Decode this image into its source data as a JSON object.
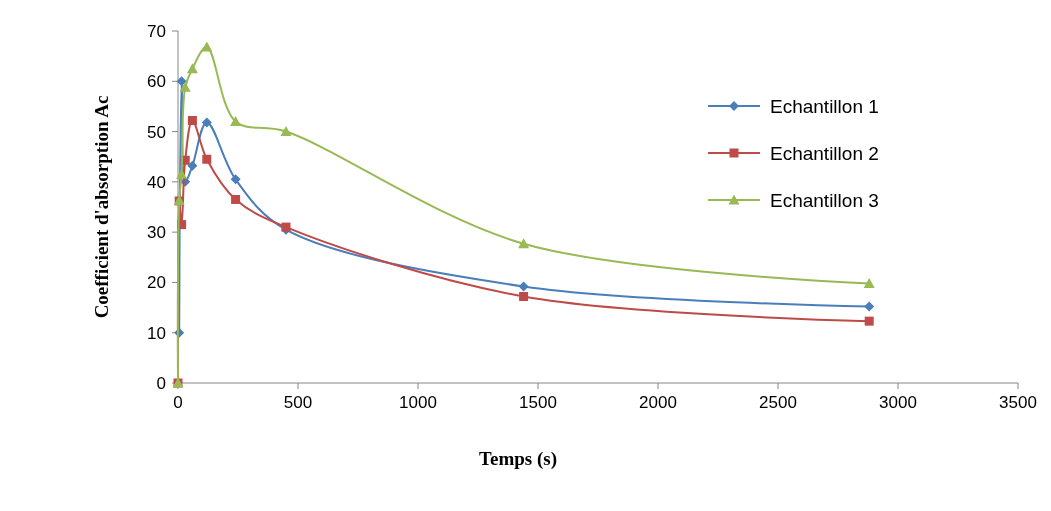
{
  "chart_data": {
    "type": "line",
    "xlabel": "Temps (s)",
    "ylabel": "Coefficient d'absorption Ac",
    "xlim": [
      0,
      3500
    ],
    "xticks": [
      0,
      500,
      1000,
      1500,
      2000,
      2500,
      3000,
      3500
    ],
    "ylim": [
      0,
      70
    ],
    "yticks": [
      0,
      10,
      20,
      30,
      40,
      50,
      60,
      70
    ],
    "grid": false,
    "legend": "right",
    "line_style": "solid",
    "series": [
      {
        "name": "Echantillon 1",
        "color": "#4a7ebb",
        "marker": "diamond",
        "x": [
          5,
          15,
          30,
          60,
          120,
          240,
          450,
          1440,
          2880
        ],
        "values": [
          10,
          60,
          40,
          43.2,
          51.8,
          40.5,
          30.5,
          19.2,
          15.2
        ]
      },
      {
        "name": "Echantillon 2",
        "color": "#be4b48",
        "marker": "square",
        "x": [
          0,
          5,
          15,
          30,
          60,
          120,
          240,
          450,
          1440,
          2880
        ],
        "values": [
          0,
          36.2,
          31.5,
          44.3,
          52.2,
          44.5,
          36.5,
          31,
          17.2,
          12.3
        ]
      },
      {
        "name": "Echantillon 3",
        "color": "#98b954",
        "marker": "triangle",
        "x": [
          0,
          5,
          15,
          30,
          60,
          120,
          240,
          450,
          1440,
          2880
        ],
        "values": [
          0,
          36.3,
          41.5,
          58.8,
          62.5,
          66.8,
          52,
          50,
          27.7,
          19.8
        ]
      }
    ]
  }
}
